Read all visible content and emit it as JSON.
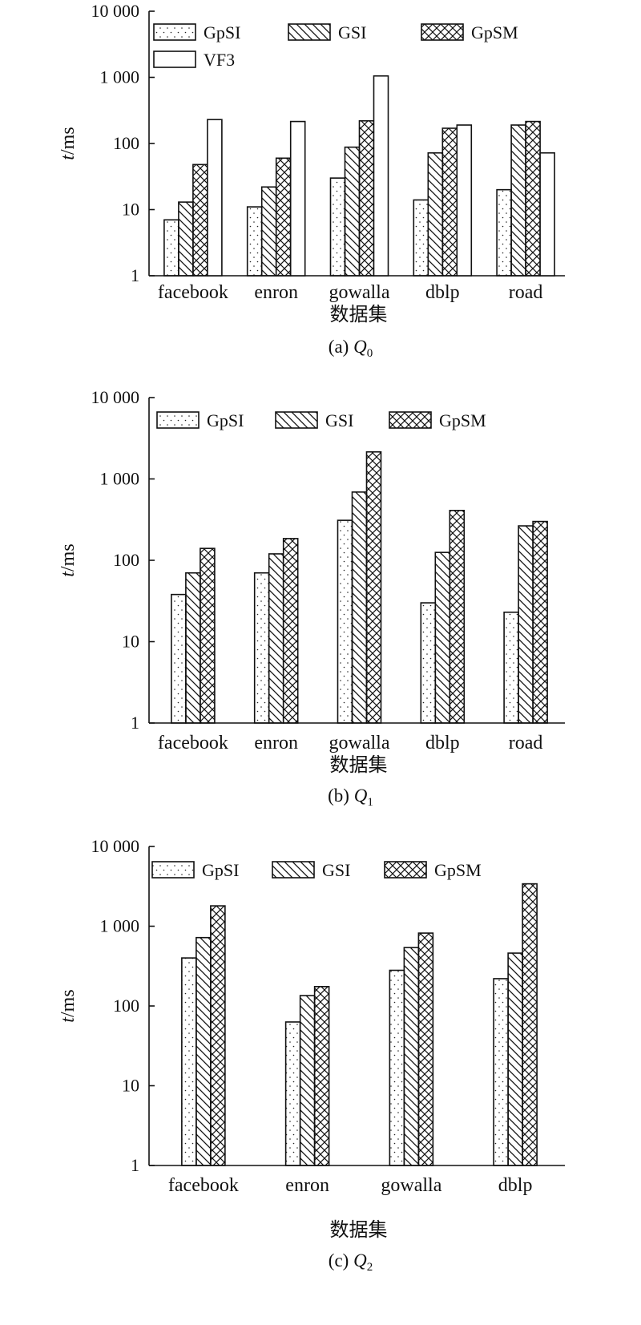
{
  "chart_data": [
    {
      "type": "bar",
      "caption": "(a) Q",
      "caption_sub": "0",
      "xlabel": "数据集",
      "ylabel": "t/ms",
      "yscale": "log",
      "ylim": [
        1,
        10000
      ],
      "yticks": [
        1,
        10,
        100,
        1000,
        10000
      ],
      "ytick_labels": [
        "1",
        "10",
        "100",
        "1 000",
        "10 000"
      ],
      "categories": [
        "facebook",
        "enron",
        "gowalla",
        "dblp",
        "road"
      ],
      "series": [
        {
          "name": "GpSI",
          "pattern": "dots",
          "values": [
            7,
            11,
            30,
            14,
            20
          ]
        },
        {
          "name": "GSI",
          "pattern": "diag",
          "values": [
            13,
            22,
            88,
            72,
            190
          ]
        },
        {
          "name": "GpSM",
          "pattern": "cross",
          "values": [
            48,
            60,
            220,
            170,
            215
          ]
        },
        {
          "name": "VF3",
          "pattern": "none",
          "values": [
            230,
            215,
            1050,
            190,
            72
          ]
        }
      ],
      "legend": "top-left",
      "grid": false
    },
    {
      "type": "bar",
      "caption": "(b) Q",
      "caption_sub": "1",
      "xlabel": "数据集",
      "ylabel": "t/ms",
      "yscale": "log",
      "ylim": [
        1,
        10000
      ],
      "yticks": [
        1,
        10,
        100,
        1000,
        10000
      ],
      "ytick_labels": [
        "1",
        "10",
        "100",
        "1 000",
        "10 000"
      ],
      "categories": [
        "facebook",
        "enron",
        "gowalla",
        "dblp",
        "road"
      ],
      "series": [
        {
          "name": "GpSI",
          "pattern": "dots",
          "values": [
            38,
            70,
            310,
            30,
            23
          ]
        },
        {
          "name": "GSI",
          "pattern": "diag",
          "values": [
            70,
            120,
            690,
            125,
            265
          ]
        },
        {
          "name": "GpSM",
          "pattern": "cross",
          "values": [
            140,
            185,
            2150,
            410,
            300
          ]
        }
      ],
      "legend": "top-left",
      "grid": false
    },
    {
      "type": "bar",
      "caption": "(c) Q",
      "caption_sub": "2",
      "xlabel": "数据集",
      "ylabel": "t/ms",
      "yscale": "log",
      "ylim": [
        1,
        10000
      ],
      "yticks": [
        1,
        10,
        100,
        1000,
        10000
      ],
      "ytick_labels": [
        "1",
        "10",
        "100",
        "1 000",
        "10 000"
      ],
      "categories": [
        "facebook",
        "enron",
        "gowalla",
        "dblp"
      ],
      "series": [
        {
          "name": "GpSI",
          "pattern": "dots",
          "values": [
            400,
            63,
            280,
            220
          ]
        },
        {
          "name": "GSI",
          "pattern": "diag",
          "values": [
            720,
            135,
            540,
            460
          ]
        },
        {
          "name": "GpSM",
          "pattern": "cross",
          "values": [
            1800,
            175,
            820,
            3400
          ]
        }
      ],
      "legend": "top-left",
      "grid": false
    }
  ]
}
